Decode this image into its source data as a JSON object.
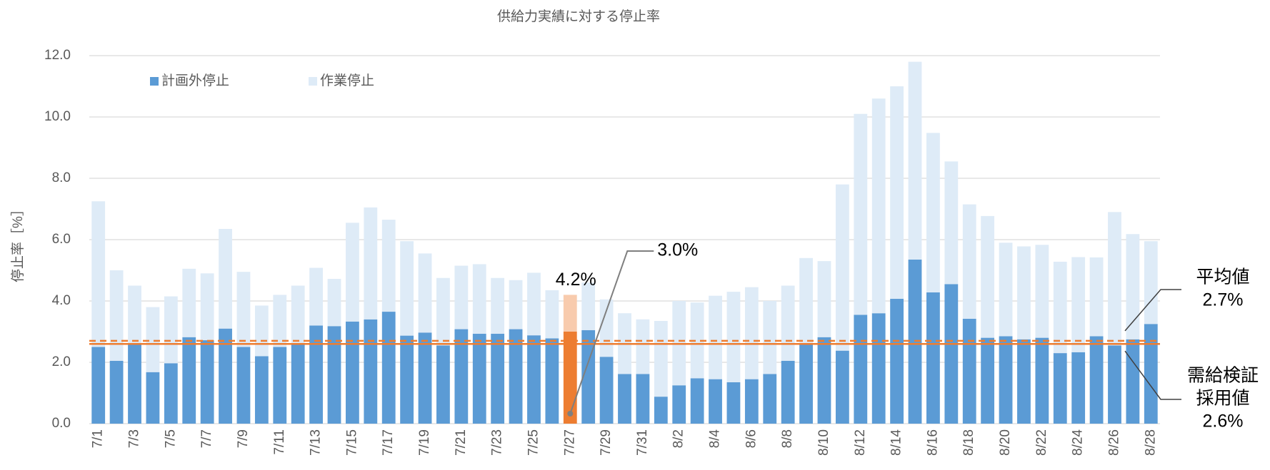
{
  "chart_data": {
    "type": "stacked_bar",
    "title": "供給力実績に対する停止率",
    "y_label": "停止率［%］",
    "categories": [
      "7/1",
      null,
      "7/3",
      null,
      "7/5",
      null,
      "7/7",
      null,
      "7/9",
      null,
      "7/11",
      null,
      "7/13",
      null,
      "7/15",
      null,
      "7/17",
      null,
      "7/19",
      null,
      "7/21",
      null,
      "7/23",
      null,
      "7/25",
      null,
      "7/27",
      null,
      "7/29",
      null,
      "7/31",
      null,
      "8/2",
      null,
      "8/4",
      null,
      "8/6",
      null,
      "8/8",
      null,
      "8/10",
      null,
      "8/12",
      null,
      "8/14",
      null,
      "8/16",
      null,
      "8/18",
      null,
      "8/20",
      null,
      "8/22",
      null,
      "8/24",
      null,
      "8/26",
      null,
      "8/28"
    ],
    "series": [
      {
        "name": "計画外停止",
        "color": "#5b9bd5",
        "highlight_color": "#ed7d31",
        "values": [
          2.5,
          2.05,
          2.6,
          1.68,
          1.97,
          2.82,
          2.72,
          3.1,
          2.5,
          2.2,
          2.5,
          2.6,
          3.2,
          3.18,
          3.33,
          3.4,
          3.65,
          2.87,
          2.97,
          2.55,
          3.08,
          2.93,
          2.93,
          3.08,
          2.88,
          2.78,
          3.0,
          3.05,
          2.18,
          1.62,
          1.62,
          0.88,
          1.25,
          1.48,
          1.45,
          1.35,
          1.45,
          1.62,
          2.05,
          2.6,
          2.82,
          2.38,
          3.55,
          3.6,
          4.07,
          5.35,
          4.28,
          4.55,
          3.42,
          2.8,
          2.85,
          2.75,
          2.8,
          2.3,
          2.33,
          2.85,
          2.55,
          2.75,
          3.25
        ]
      },
      {
        "name": "作業停止",
        "color": "#deebf7",
        "highlight_color": "#f8cbad",
        "values": [
          4.75,
          2.95,
          1.9,
          2.12,
          2.18,
          2.23,
          2.18,
          3.25,
          2.45,
          1.65,
          1.7,
          1.9,
          1.88,
          1.54,
          3.22,
          3.65,
          3.0,
          3.08,
          2.58,
          2.2,
          2.07,
          2.27,
          1.82,
          1.6,
          2.04,
          1.57,
          1.2,
          1.55,
          1.87,
          1.98,
          1.78,
          2.47,
          2.75,
          2.47,
          2.72,
          2.95,
          3.0,
          2.38,
          2.45,
          2.8,
          2.48,
          5.42,
          6.55,
          7.0,
          6.93,
          6.45,
          5.2,
          4.0,
          3.73,
          3.97,
          3.05,
          3.03,
          3.03,
          2.98,
          3.1,
          2.57,
          4.35,
          3.43,
          2.7
        ]
      }
    ],
    "highlight_index": 26,
    "annotations": [
      {
        "label": "4.2%",
        "value": 4.2
      },
      {
        "label": "3.0%",
        "value": 3.0
      }
    ],
    "reference_lines": [
      {
        "name_lines": [
          "平均値"
        ],
        "label": "2.7%",
        "value": 2.7,
        "color": "#ed7d31",
        "style": "dashed"
      },
      {
        "name_lines": [
          "需給検証",
          "採用値"
        ],
        "label": "2.6%",
        "value": 2.6,
        "color": "#ed7d31",
        "style": "solid"
      }
    ],
    "ylim": [
      0,
      12
    ],
    "yticks": [
      {
        "value": 0,
        "label": "0.0"
      },
      {
        "value": 2,
        "label": "2.0"
      },
      {
        "value": 4,
        "label": "4.0"
      },
      {
        "value": 6,
        "label": "6.0"
      },
      {
        "value": 8,
        "label": "8.0"
      },
      {
        "value": 10,
        "label": "10.0"
      },
      {
        "value": 12,
        "label": "12.0"
      }
    ],
    "grid": true,
    "legend": "top-left"
  }
}
